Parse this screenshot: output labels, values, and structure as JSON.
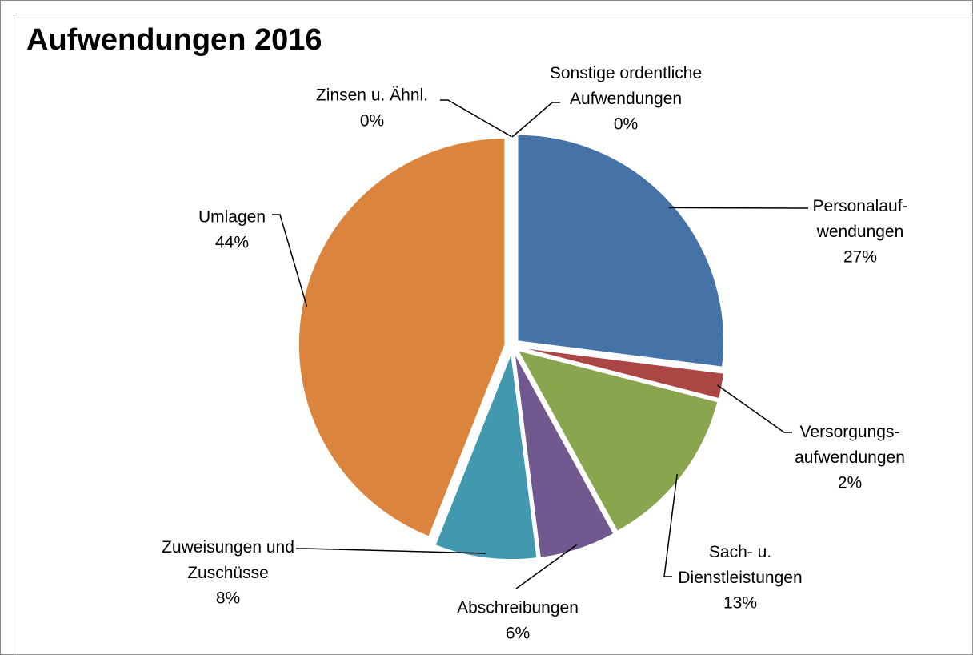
{
  "chart_data": {
    "type": "pie",
    "title": "Aufwendungen 2016",
    "categories": [
      "Personalauf-\nwendungen",
      "Versorgungs-\naufwendungen",
      "Sach- u.\nDienstleistungen",
      "Abschreibungen",
      "Zuweisungen und\nZuschüsse",
      "Umlagen",
      "Zinsen u. Ähnl.",
      "Sonstige ordentliche\nAufwendungen"
    ],
    "values": [
      27,
      2,
      13,
      6,
      8,
      44,
      0,
      0
    ],
    "value_labels": [
      "27%",
      "2%",
      "13%",
      "6%",
      "8%",
      "44%",
      "0%",
      "0%"
    ],
    "colors": [
      "#4572a7",
      "#aa4643",
      "#89a54e",
      "#71588f",
      "#4198af",
      "#db843d",
      "#93a9cf",
      "#d19392"
    ]
  }
}
